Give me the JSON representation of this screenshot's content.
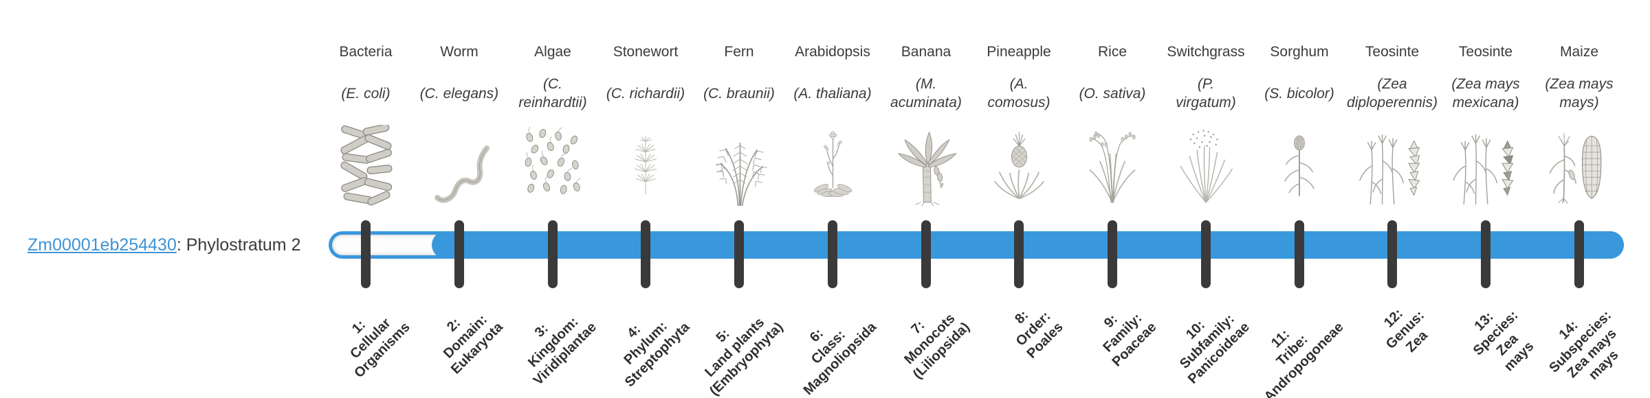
{
  "gene": {
    "id": "Zm00001eb254430",
    "suffix": ": Phylostratum 2",
    "phylostratum": 2
  },
  "colors": {
    "bar_fill_blue": "#3998DB",
    "track_unfilled": "#FDFDFD",
    "tick_dark": "#3A3A3A",
    "link_blue": "#3D94D6",
    "text_dark": "#3B3B3B"
  },
  "chart_data": {
    "type": "bar",
    "subtype": "phylostratigraphy-timeline",
    "orientation": "horizontal",
    "title": "",
    "gene_id": "Zm00001eb254430",
    "phylostratum": 2,
    "num_strata": 14,
    "bar_fill_range": [
      2,
      14
    ],
    "unfilled_strata": [
      1
    ],
    "legend_position": "none",
    "grid": false,
    "strata": [
      {
        "index": 1,
        "tick_label": "1:\nCellular\nOrganisms",
        "organism": "Bacteria",
        "species": "(E. coli)",
        "icon": "bacteria"
      },
      {
        "index": 2,
        "tick_label": "2:\nDomain:\nEukaryota",
        "organism": "Worm",
        "species": "(C. elegans)",
        "icon": "worm"
      },
      {
        "index": 3,
        "tick_label": "3:\nKingdom:\nViridiplantae",
        "organism": "Algae",
        "species": "(C.\nreinhardtii)",
        "icon": "algae"
      },
      {
        "index": 4,
        "tick_label": "4:\nPhylum:\nStreptophyta",
        "organism": "Stonewort",
        "species": "(C. richardii)",
        "icon": "stonewort"
      },
      {
        "index": 5,
        "tick_label": "5:\nLand plants\n(Embryophyta)",
        "organism": "Fern",
        "species": "(C. braunii)",
        "icon": "fern"
      },
      {
        "index": 6,
        "tick_label": "6:\nClass:\nMagnoliopsida",
        "organism": "Arabidopsis",
        "species": "(A. thaliana)",
        "icon": "arabidopsis"
      },
      {
        "index": 7,
        "tick_label": "7:\nMonocots\n(Liliopsida)",
        "organism": "Banana",
        "species": "(M.\nacuminata)",
        "icon": "banana"
      },
      {
        "index": 8,
        "tick_label": "8:\nOrder:\nPoales",
        "organism": "Pineapple",
        "species": "(A.\ncomosus)",
        "icon": "pineapple"
      },
      {
        "index": 9,
        "tick_label": "9:\nFamily:\nPoaceae",
        "organism": "Rice",
        "species": "(O. sativa)",
        "icon": "rice"
      },
      {
        "index": 10,
        "tick_label": "10:\nSubfamily:\nPanicoideae",
        "organism": "Switchgrass",
        "species": "(P.\nvirgatum)",
        "icon": "switchgrass"
      },
      {
        "index": 11,
        "tick_label": "11:\nTribe:\nAndropogoneae",
        "organism": "Sorghum",
        "species": "(S. bicolor)",
        "icon": "sorghum"
      },
      {
        "index": 12,
        "tick_label": "12:\nGenus:\nZea",
        "organism": "Teosinte",
        "species": "(Zea\ndiploperennis)",
        "icon": "teosinte"
      },
      {
        "index": 13,
        "tick_label": "13:\nSpecies:\nZea\nmays",
        "organism": "Teosinte",
        "species": "(Zea mays\nmexicana)",
        "icon": "teosinte-mexicana"
      },
      {
        "index": 14,
        "tick_label": "14:\nSubspecies:\nZea mays\nmays",
        "organism": "Maize",
        "species": "(Zea mays\nmays)",
        "icon": "maize"
      }
    ]
  }
}
